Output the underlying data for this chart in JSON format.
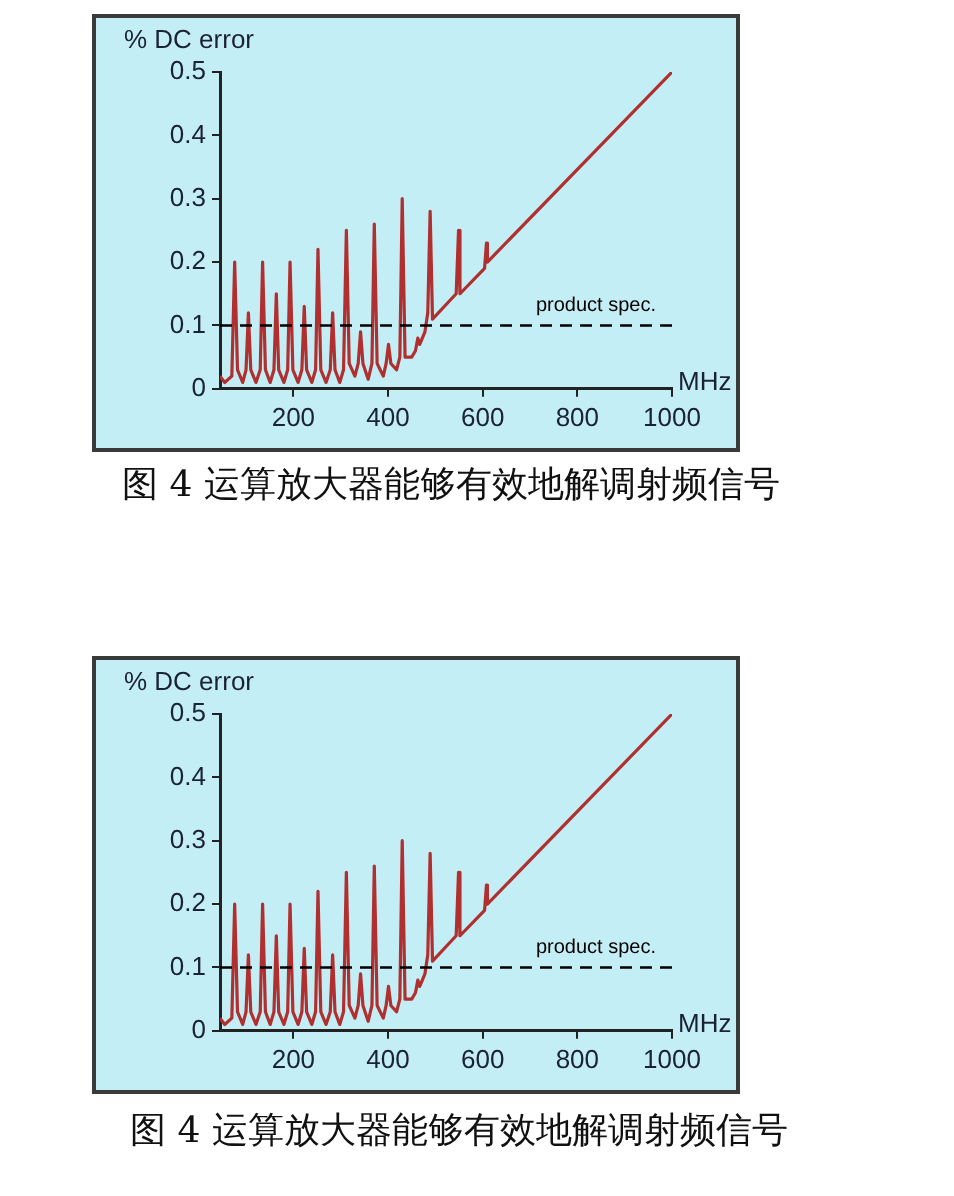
{
  "chart_data": [
    {
      "type": "line",
      "title": "图 4 运算放大器能够有效地解调射频信号",
      "xlabel": "MHz",
      "ylabel": "% DC error",
      "x": [
        45,
        55,
        70,
        76,
        82,
        93,
        100,
        105,
        110,
        121,
        130,
        135,
        141,
        151,
        159,
        164,
        169,
        180,
        188,
        193,
        199,
        210,
        218,
        223,
        228,
        239,
        247,
        252,
        258,
        269,
        278,
        283,
        288,
        298,
        306,
        312,
        318,
        330,
        337,
        342,
        347,
        358,
        366,
        371,
        377,
        390,
        396,
        401,
        406,
        418,
        425,
        430,
        436,
        450,
        458,
        463,
        467,
        478,
        484,
        489,
        494,
        544,
        549,
        552,
        604,
        608,
        610,
        1000
      ],
      "values": [
        0.02,
        0.01,
        0.02,
        0.2,
        0.03,
        0.01,
        0.03,
        0.12,
        0.03,
        0.01,
        0.03,
        0.2,
        0.03,
        0.01,
        0.03,
        0.15,
        0.03,
        0.01,
        0.03,
        0.2,
        0.03,
        0.01,
        0.03,
        0.13,
        0.03,
        0.01,
        0.03,
        0.22,
        0.03,
        0.01,
        0.03,
        0.12,
        0.03,
        0.01,
        0.03,
        0.25,
        0.04,
        0.02,
        0.04,
        0.09,
        0.04,
        0.015,
        0.04,
        0.26,
        0.04,
        0.02,
        0.04,
        0.07,
        0.04,
        0.03,
        0.05,
        0.3,
        0.05,
        0.05,
        0.06,
        0.08,
        0.07,
        0.09,
        0.12,
        0.28,
        0.11,
        0.15,
        0.25,
        0.15,
        0.19,
        0.23,
        0.2,
        0.5
      ],
      "color": "#b03030",
      "xlim": [
        45,
        1000
      ],
      "xticks": [
        200,
        400,
        600,
        800,
        1000
      ],
      "ylim": [
        0,
        0.5
      ],
      "yticks": [
        0,
        0.1,
        0.2,
        0.3,
        0.4,
        0.5
      ],
      "marker": "none",
      "ref_lines": [
        {
          "axis": "y",
          "value": 0.1,
          "label": "product spec.",
          "color": "#000000",
          "line_style": "dashed"
        }
      ]
    },
    {
      "type": "line",
      "title": "图 4 运算放大器能够有效地解调射频信号",
      "xlabel": "MHz",
      "ylabel": "% DC error",
      "x": [
        45,
        55,
        70,
        76,
        82,
        93,
        100,
        105,
        110,
        121,
        130,
        135,
        141,
        151,
        159,
        164,
        169,
        180,
        188,
        193,
        199,
        210,
        218,
        223,
        228,
        239,
        247,
        252,
        258,
        269,
        278,
        283,
        288,
        298,
        306,
        312,
        318,
        330,
        337,
        342,
        347,
        358,
        366,
        371,
        377,
        390,
        396,
        401,
        406,
        418,
        425,
        430,
        436,
        450,
        458,
        463,
        467,
        478,
        484,
        489,
        494,
        544,
        549,
        552,
        604,
        608,
        610,
        1000
      ],
      "values": [
        0.02,
        0.01,
        0.02,
        0.2,
        0.03,
        0.01,
        0.03,
        0.12,
        0.03,
        0.01,
        0.03,
        0.2,
        0.03,
        0.01,
        0.03,
        0.15,
        0.03,
        0.01,
        0.03,
        0.2,
        0.03,
        0.01,
        0.03,
        0.13,
        0.03,
        0.01,
        0.03,
        0.22,
        0.03,
        0.01,
        0.03,
        0.12,
        0.03,
        0.01,
        0.03,
        0.25,
        0.04,
        0.02,
        0.04,
        0.09,
        0.04,
        0.015,
        0.04,
        0.26,
        0.04,
        0.02,
        0.04,
        0.07,
        0.04,
        0.03,
        0.05,
        0.3,
        0.05,
        0.05,
        0.06,
        0.08,
        0.07,
        0.09,
        0.12,
        0.28,
        0.11,
        0.15,
        0.25,
        0.15,
        0.19,
        0.23,
        0.2,
        0.5
      ],
      "color": "#b03030",
      "xlim": [
        45,
        1000
      ],
      "xticks": [
        200,
        400,
        600,
        800,
        1000
      ],
      "ylim": [
        0,
        0.5
      ],
      "yticks": [
        0,
        0.1,
        0.2,
        0.3,
        0.4,
        0.5
      ],
      "marker": "none",
      "ref_lines": [
        {
          "axis": "y",
          "value": 0.1,
          "label": "product spec.",
          "color": "#000000",
          "line_style": "dashed"
        }
      ]
    }
  ]
}
